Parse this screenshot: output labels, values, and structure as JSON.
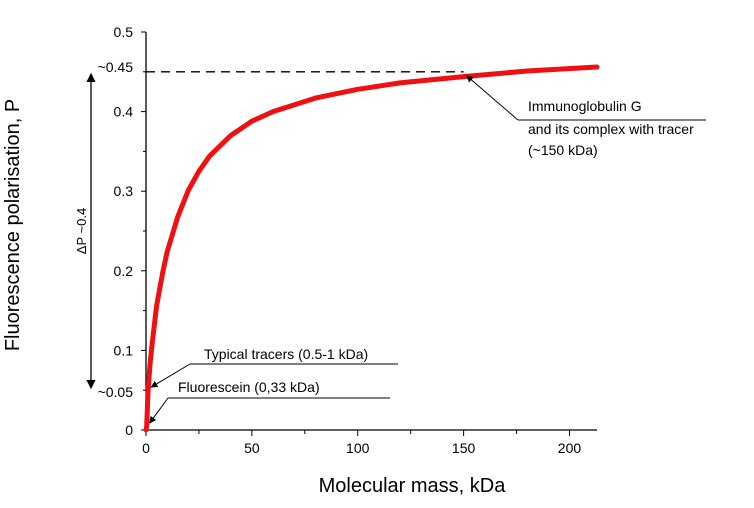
{
  "chart_data": {
    "type": "line",
    "title": "",
    "xlabel": "Molecular mass, kDa",
    "ylabel": "Fluorescence polarisation, P",
    "xlim": [
      0,
      213
    ],
    "ylim": [
      0,
      0.5
    ],
    "x_ticks": [
      "0",
      "50",
      "100",
      "150",
      "200"
    ],
    "y_ticks": [
      "0",
      "0.1",
      "0.2",
      "0.3",
      "0.4",
      "0.5"
    ],
    "y_extra_ticks": [
      "~0.05",
      "~0.45"
    ],
    "grid": false,
    "line_color": "#ee1111",
    "series": [
      {
        "name": "",
        "x": [
          0.33,
          1,
          2,
          3,
          5,
          8,
          10,
          15,
          20,
          25,
          30,
          40,
          50,
          60,
          80,
          100,
          120,
          150,
          180,
          213
        ],
        "y": [
          0.005,
          0.05,
          0.085,
          0.111,
          0.156,
          0.199,
          0.224,
          0.268,
          0.301,
          0.325,
          0.344,
          0.37,
          0.388,
          0.4,
          0.417,
          0.428,
          0.436,
          0.444,
          0.451,
          0.456
        ]
      }
    ],
    "delta_label": "ΔP ~0.4",
    "annotations": [
      {
        "text_lines": [
          "Immunoglobulin G",
          "and its complex with tracer",
          "(~150 kDa)"
        ],
        "x": 150,
        "y": 0.45
      },
      {
        "text_lines": [
          "Typical tracers (0.5-1 kDa)"
        ],
        "x": 1,
        "y": 0.05
      },
      {
        "text_lines": [
          "Fluorescein (0,33 kDa)"
        ],
        "x": 0.33,
        "y": 0.005
      }
    ]
  }
}
